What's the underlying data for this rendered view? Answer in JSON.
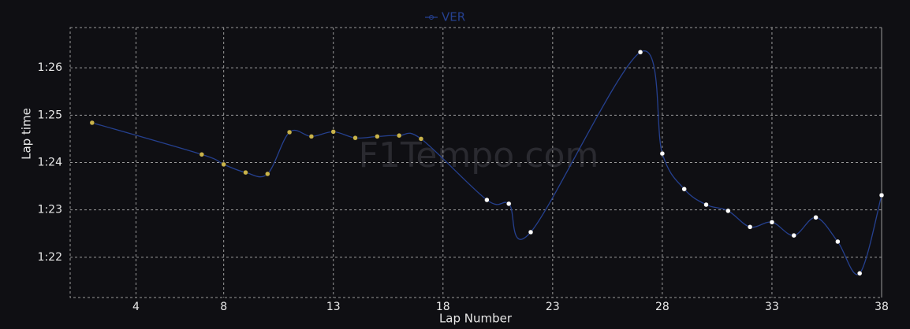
{
  "chart_data": {
    "type": "line",
    "x_label": "Lap Number",
    "y_label": "Lap time",
    "watermark": "F1Tempo.com",
    "x": [
      2,
      7,
      8,
      9,
      10,
      11,
      12,
      13,
      14,
      15,
      16,
      17,
      20,
      21,
      22,
      27,
      28,
      29,
      30,
      31,
      32,
      33,
      34,
      35,
      36,
      37,
      38
    ],
    "series": [
      {
        "name": "VER",
        "color": "#25408f",
        "values": [
          84.84,
          84.17,
          83.96,
          83.79,
          83.76,
          84.64,
          84.55,
          84.65,
          84.52,
          84.55,
          84.57,
          84.5,
          83.21,
          83.13,
          82.53,
          86.33,
          84.19,
          83.44,
          83.11,
          82.98,
          82.64,
          82.74,
          82.46,
          82.84,
          82.33,
          81.66,
          83.31
        ],
        "marker_colors": [
          "#c9b34a",
          "#c9b34a",
          "#c9b34a",
          "#c9b34a",
          "#c9b34a",
          "#c9b34a",
          "#c9b34a",
          "#c9b34a",
          "#c9b34a",
          "#c9b34a",
          "#c9b34a",
          "#c9b34a",
          "#ffffff",
          "#ffffff",
          "#ffffff",
          "#ffffff",
          "#ffffff",
          "#ffffff",
          "#ffffff",
          "#ffffff",
          "#ffffff",
          "#ffffff",
          "#ffffff",
          "#ffffff",
          "#ffffff",
          "#ffffff",
          "#ffffff"
        ]
      }
    ],
    "xlim": [
      1,
      38
    ],
    "xticks": [
      4,
      8,
      13,
      18,
      23,
      28,
      33,
      38
    ],
    "ylim": [
      81.15,
      86.85
    ],
    "yticks": [
      {
        "value": 82,
        "label": "1:22"
      },
      {
        "value": 83,
        "label": "1:23"
      },
      {
        "value": 84,
        "label": "1:24"
      },
      {
        "value": 85,
        "label": "1:25"
      },
      {
        "value": 86,
        "label": "1:26"
      }
    ],
    "grid": true,
    "legend": "top"
  }
}
